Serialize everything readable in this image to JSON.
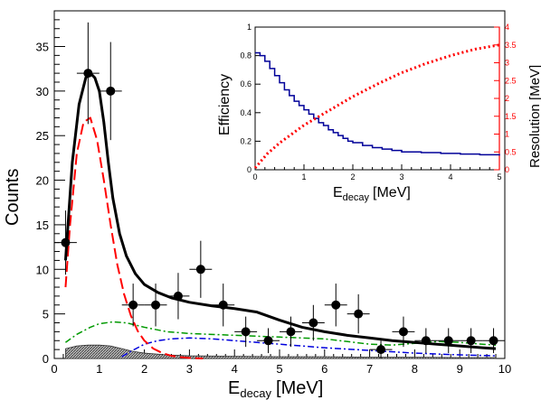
{
  "chart_data": [
    {
      "type": "scatter",
      "xlabel": "E",
      "xlabel_sub": "decay",
      "xlabel_unit": "[MeV]",
      "ylabel": "Counts",
      "xlim": [
        0,
        10
      ],
      "ylim": [
        0,
        39
      ],
      "x_ticks": [
        0,
        1,
        2,
        3,
        4,
        5,
        6,
        7,
        8,
        9,
        10
      ],
      "y_ticks": [
        0,
        5,
        10,
        15,
        20,
        25,
        30,
        35
      ],
      "data_points": {
        "x": [
          0.25,
          0.75,
          1.25,
          1.75,
          2.25,
          2.75,
          3.25,
          3.75,
          4.25,
          4.75,
          5.25,
          5.75,
          6.25,
          6.75,
          7.25,
          7.75,
          8.25,
          8.75,
          9.25,
          9.75
        ],
        "y": [
          13,
          32,
          30,
          6,
          6,
          7,
          10,
          6,
          3,
          2,
          3,
          4,
          6,
          5,
          1,
          3,
          2,
          2,
          2,
          2
        ],
        "y_err": [
          3.6,
          5.7,
          5.5,
          2.4,
          2.4,
          2.6,
          3.2,
          2.4,
          1.7,
          1.4,
          1.7,
          2.0,
          2.4,
          2.2,
          1.0,
          1.7,
          1.4,
          1.4,
          1.4,
          1.4
        ],
        "x_err": 0.25
      },
      "series": [
        {
          "style": "solid-black",
          "color": "#000000",
          "x": [
            0.25,
            0.4,
            0.55,
            0.7,
            0.8,
            0.9,
            1.0,
            1.1,
            1.2,
            1.3,
            1.45,
            1.6,
            1.8,
            2.0,
            2.3,
            2.6,
            3.0,
            3.5,
            4.0,
            4.5,
            5.0,
            5.5,
            6.0,
            6.5,
            7.0,
            7.5,
            8.0,
            8.5,
            9.0,
            9.5,
            9.8
          ],
          "y": [
            11,
            22,
            28.5,
            31.5,
            32,
            31.5,
            30,
            26.5,
            22,
            18,
            14,
            11.5,
            9.5,
            8.3,
            7.4,
            6.8,
            6.3,
            5.9,
            5.6,
            5.2,
            4.3,
            3.5,
            3.0,
            2.6,
            2.3,
            2.0,
            1.8,
            1.6,
            1.4,
            1.2,
            1.1
          ]
        },
        {
          "style": "dashed-red",
          "color": "#ff0000",
          "x": [
            0.25,
            0.35,
            0.5,
            0.65,
            0.8,
            0.95,
            1.1,
            1.25,
            1.4,
            1.55,
            1.7,
            1.85,
            2.0,
            2.2,
            2.4,
            2.6,
            2.8,
            3.0,
            3.3
          ],
          "y": [
            8,
            15,
            23,
            26.5,
            27,
            24.5,
            20,
            15,
            10.5,
            7.2,
            4.8,
            3.1,
            2.0,
            1.1,
            0.6,
            0.3,
            0.15,
            0.05,
            0
          ]
        },
        {
          "style": "dashdot-green",
          "color": "#009900",
          "x": [
            0.25,
            0.5,
            0.8,
            1.0,
            1.3,
            1.6,
            2.0,
            2.5,
            3.0,
            4.0,
            5.0,
            6.0,
            7.0,
            7.5,
            8.0,
            8.5,
            9.0,
            9.5,
            9.8
          ],
          "y": [
            1.8,
            2.7,
            3.5,
            3.9,
            4.1,
            4.0,
            3.5,
            3.0,
            2.8,
            2.6,
            2.4,
            2.2,
            1.6,
            1.5,
            1.7,
            1.9,
            1.8,
            1.6,
            1.5
          ]
        },
        {
          "style": "dashdot-blue",
          "color": "#0000dd",
          "x": [
            1.5,
            1.7,
            2.0,
            2.3,
            2.6,
            3.0,
            3.5,
            4.0,
            5.0,
            6.0,
            7.0,
            8.0,
            9.0,
            9.8
          ],
          "y": [
            0.2,
            0.8,
            1.6,
            2.0,
            2.2,
            2.3,
            2.2,
            2.0,
            1.6,
            1.2,
            0.9,
            0.6,
            0.4,
            0.3
          ]
        },
        {
          "style": "shaded-grey",
          "color": "#555555",
          "x": [
            0.25,
            0.5,
            0.75,
            1.0,
            1.25,
            1.5,
            1.75,
            2.0,
            2.5,
            3.0,
            4.0,
            5.0,
            6.0,
            7.0,
            8.0,
            9.0,
            9.8
          ],
          "y": [
            1.1,
            1.4,
            1.5,
            1.5,
            1.4,
            1.1,
            0.8,
            0.6,
            0.4,
            0.3,
            0.25,
            0.2,
            0.2,
            0.15,
            0.15,
            0.1,
            0.1
          ]
        }
      ]
    },
    {
      "type": "line",
      "xlabel": "E",
      "xlabel_sub": "decay",
      "xlabel_unit": "[MeV]",
      "ylabel": "Efficiency",
      "y2label": "Resolution [MeV]",
      "xlim": [
        0,
        5
      ],
      "ylim": [
        0,
        1
      ],
      "y2lim": [
        0,
        4
      ],
      "x_ticks": [
        0,
        1,
        2,
        3,
        4,
        5
      ],
      "y_ticks": [
        0,
        0.2,
        0.4,
        0.6,
        0.8
      ],
      "y_tick_top": 1,
      "y2_ticks": [
        0,
        0.5,
        1,
        1.5,
        2,
        2.5,
        3,
        3.5,
        4
      ],
      "series": [
        {
          "style": "step-blue",
          "color": "#000099",
          "x": [
            0.0,
            0.1,
            0.2,
            0.3,
            0.4,
            0.5,
            0.6,
            0.7,
            0.8,
            0.9,
            1.0,
            1.1,
            1.2,
            1.3,
            1.4,
            1.5,
            1.6,
            1.7,
            1.8,
            1.9,
            2.0,
            2.2,
            2.4,
            2.6,
            2.8,
            3.0,
            3.4,
            3.8,
            4.2,
            4.6,
            5.0
          ],
          "y": [
            0.82,
            0.8,
            0.76,
            0.71,
            0.66,
            0.61,
            0.56,
            0.52,
            0.48,
            0.45,
            0.42,
            0.39,
            0.36,
            0.33,
            0.31,
            0.28,
            0.26,
            0.24,
            0.22,
            0.2,
            0.19,
            0.17,
            0.155,
            0.145,
            0.135,
            0.125,
            0.12,
            0.115,
            0.11,
            0.105,
            0.1
          ]
        },
        {
          "style": "dotted-red",
          "color": "#ff0000",
          "axis": "right",
          "x": [
            0.0,
            0.25,
            0.5,
            0.75,
            1.0,
            1.5,
            2.0,
            2.5,
            3.0,
            3.5,
            4.0,
            4.5,
            5.0
          ],
          "y": [
            0.05,
            0.45,
            0.75,
            1.0,
            1.25,
            1.65,
            2.05,
            2.4,
            2.72,
            2.98,
            3.2,
            3.38,
            3.5
          ]
        }
      ]
    }
  ]
}
